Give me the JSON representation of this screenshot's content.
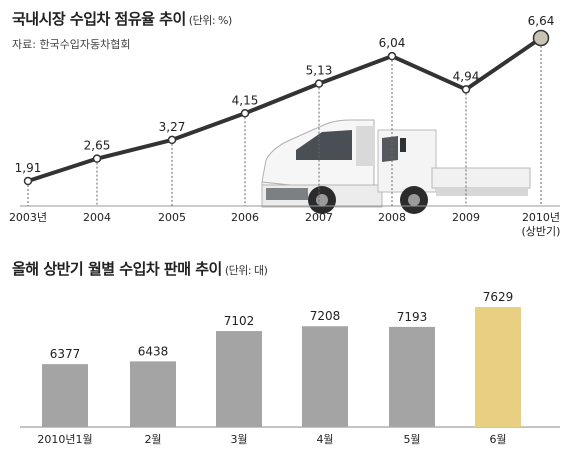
{
  "chart_data": [
    {
      "type": "line",
      "title": "국내시장 수입차 점유율 추이",
      "unit": "(단위: %)",
      "source": "자료: 한국수입자동차협회",
      "categories": [
        "2003년",
        "2004",
        "2005",
        "2006",
        "2007",
        "2008",
        "2009",
        "2010년\n(상반기)"
      ],
      "category_lines": [
        [
          "2003년"
        ],
        [
          "2004"
        ],
        [
          "2005"
        ],
        [
          "2006"
        ],
        [
          "2007"
        ],
        [
          "2008"
        ],
        [
          "2009"
        ],
        [
          "2010년",
          "(상반기)"
        ]
      ],
      "values": [
        1.91,
        2.65,
        3.27,
        4.15,
        5.13,
        6.04,
        4.94,
        6.64
      ],
      "value_labels": [
        "1,91",
        "2,65",
        "3,27",
        "4,15",
        "5,13",
        "6,04",
        "4,94",
        "6,64"
      ],
      "ylim": [
        1.0,
        7.0
      ],
      "grid": false,
      "colors": {
        "line": "#333333",
        "point": "#ffffff",
        "highlight": "#c9c3b3"
      },
      "illustration": "white-truck"
    },
    {
      "type": "bar",
      "title": "올해 상반기 월별 수입차 판매 추이",
      "unit": "(단위: 대)",
      "categories": [
        "2010년1월",
        "2월",
        "3월",
        "4월",
        "5월",
        "6월"
      ],
      "values": [
        6377,
        6438,
        7102,
        7208,
        7193,
        7629
      ],
      "value_labels": [
        "6377",
        "6438",
        "7102",
        "7208",
        "7193",
        "7629"
      ],
      "ylim": [
        0,
        7629
      ],
      "grid": false,
      "colors": {
        "bar": "#a4a4a4",
        "highlight": "#e9cf82"
      }
    }
  ]
}
